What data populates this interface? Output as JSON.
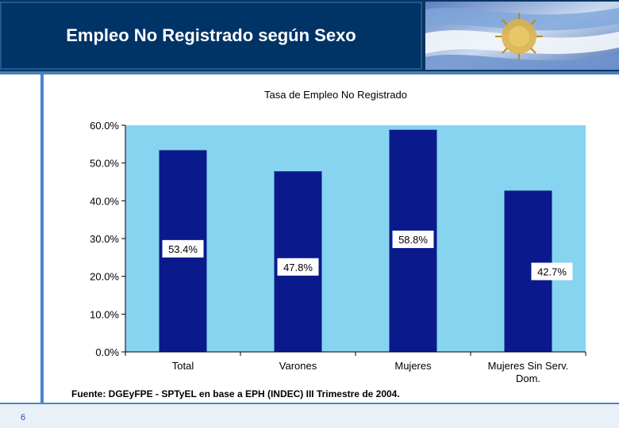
{
  "slide": {
    "title": "Empleo No Registrado según Sexo",
    "page_number": "6",
    "source_note": "Fuente: DGEyFPE - SPTyEL en base a EPH (INDEC) III Trimestre de 2004."
  },
  "colors": {
    "header_bg": "#003366",
    "plot_bg": "#87D4F0",
    "bar_fill": "#0A1A8C"
  },
  "chart_data": {
    "type": "bar",
    "title": "Tasa de Empleo No Registrado",
    "categories": [
      "Total",
      "Varones",
      "Mujeres",
      "Mujeres Sin Serv. Dom."
    ],
    "values": [
      53.4,
      47.8,
      58.8,
      42.7
    ],
    "value_labels": [
      "53.4%",
      "47.8%",
      "58.8%",
      "42.7%"
    ],
    "ylim": [
      0,
      60
    ],
    "yticks": [
      "0.0%",
      "10.0%",
      "20.0%",
      "30.0%",
      "40.0%",
      "50.0%",
      "60.0%"
    ],
    "xlabel": "",
    "ylabel": "",
    "legend": "none"
  }
}
